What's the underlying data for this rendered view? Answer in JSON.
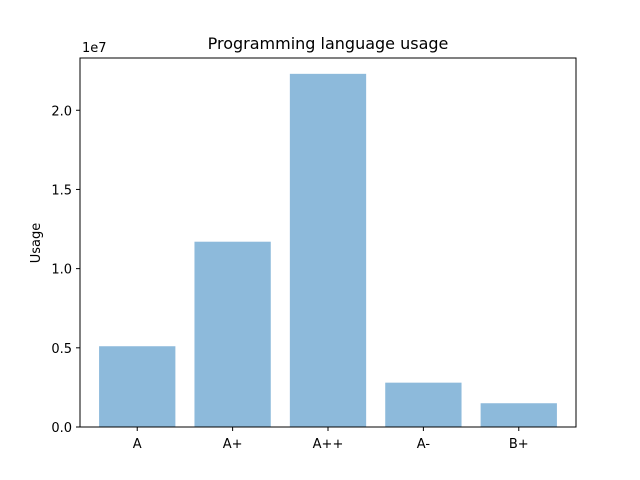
{
  "chart_data": {
    "type": "bar",
    "title": "Programming language usage",
    "xlabel": "",
    "ylabel": "Usage",
    "categories": [
      "A",
      "A+",
      "A++",
      "A-",
      "B+"
    ],
    "values": [
      5100000,
      11700000,
      22300000,
      2800000,
      1500000
    ],
    "ylim": [
      0,
      23300000
    ],
    "y_ticks": [
      0,
      5000000,
      10000000,
      15000000,
      20000000
    ],
    "y_tick_labels": [
      "0.0",
      "0.5",
      "1.0",
      "1.5",
      "2.0"
    ],
    "y_offset_text": "1e7",
    "bar_color": "#8dbadb",
    "grid": false,
    "legend": "none"
  }
}
